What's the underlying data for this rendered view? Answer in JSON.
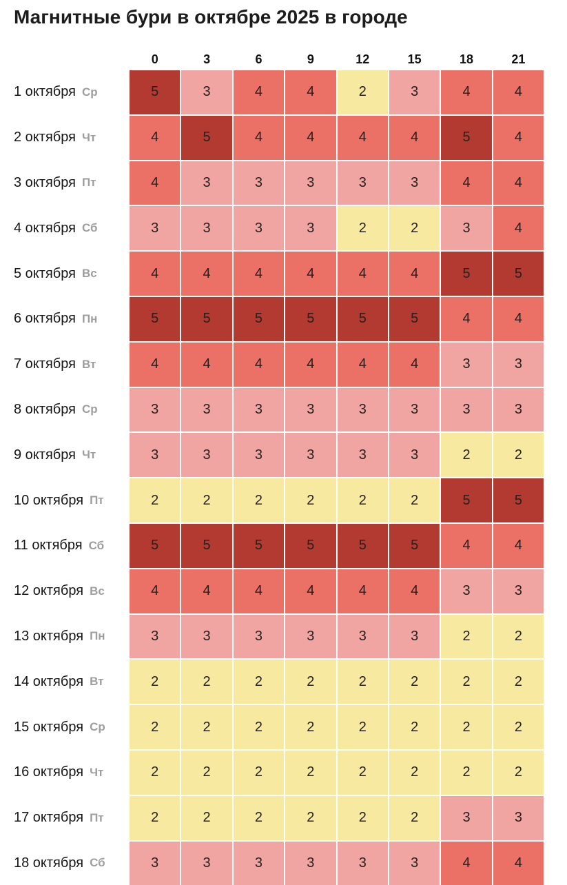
{
  "title": "Магнитные бури в октябре 2025 в городе",
  "chart_data": {
    "type": "heatmap",
    "title": "Магнитные бури в октябре 2025 в городе",
    "x_axis": "hours of day",
    "columns": [
      "0",
      "3",
      "6",
      "9",
      "12",
      "15",
      "18",
      "21"
    ],
    "value_range": [
      2,
      5
    ],
    "level_colors": {
      "2": "#f8e9a1",
      "3": "#f1a5a2",
      "4": "#eb7066",
      "5": "#b23a31"
    },
    "rows": [
      {
        "date": "1 октября",
        "weekday": "Ср",
        "values": [
          5,
          3,
          4,
          4,
          2,
          3,
          4,
          4
        ]
      },
      {
        "date": "2 октября",
        "weekday": "Чт",
        "values": [
          4,
          5,
          4,
          4,
          4,
          4,
          5,
          4
        ]
      },
      {
        "date": "3 октября",
        "weekday": "Пт",
        "values": [
          4,
          3,
          3,
          3,
          3,
          3,
          4,
          4
        ]
      },
      {
        "date": "4 октября",
        "weekday": "Сб",
        "values": [
          3,
          3,
          3,
          3,
          2,
          2,
          3,
          4
        ]
      },
      {
        "date": "5 октября",
        "weekday": "Вс",
        "values": [
          4,
          4,
          4,
          4,
          4,
          4,
          5,
          5
        ]
      },
      {
        "date": "6 октября",
        "weekday": "Пн",
        "values": [
          5,
          5,
          5,
          5,
          5,
          5,
          4,
          4
        ]
      },
      {
        "date": "7 октября",
        "weekday": "Вт",
        "values": [
          4,
          4,
          4,
          4,
          4,
          4,
          3,
          3
        ]
      },
      {
        "date": "8 октября",
        "weekday": "Ср",
        "values": [
          3,
          3,
          3,
          3,
          3,
          3,
          3,
          3
        ]
      },
      {
        "date": "9 октября",
        "weekday": "Чт",
        "values": [
          3,
          3,
          3,
          3,
          3,
          3,
          2,
          2
        ]
      },
      {
        "date": "10 октября",
        "weekday": "Пт",
        "values": [
          2,
          2,
          2,
          2,
          2,
          2,
          5,
          5
        ]
      },
      {
        "date": "11 октября",
        "weekday": "Сб",
        "values": [
          5,
          5,
          5,
          5,
          5,
          5,
          4,
          4
        ]
      },
      {
        "date": "12 октября",
        "weekday": "Вс",
        "values": [
          4,
          4,
          4,
          4,
          4,
          4,
          3,
          3
        ]
      },
      {
        "date": "13 октября",
        "weekday": "Пн",
        "values": [
          3,
          3,
          3,
          3,
          3,
          3,
          2,
          2
        ]
      },
      {
        "date": "14 октября",
        "weekday": "Вт",
        "values": [
          2,
          2,
          2,
          2,
          2,
          2,
          2,
          2
        ]
      },
      {
        "date": "15 октября",
        "weekday": "Ср",
        "values": [
          2,
          2,
          2,
          2,
          2,
          2,
          2,
          2
        ]
      },
      {
        "date": "16 октября",
        "weekday": "Чт",
        "values": [
          2,
          2,
          2,
          2,
          2,
          2,
          2,
          2
        ]
      },
      {
        "date": "17 октября",
        "weekday": "Пт",
        "values": [
          2,
          2,
          2,
          2,
          2,
          2,
          3,
          3
        ]
      },
      {
        "date": "18 октября",
        "weekday": "Сб",
        "values": [
          3,
          3,
          3,
          3,
          3,
          3,
          4,
          4
        ]
      }
    ]
  }
}
